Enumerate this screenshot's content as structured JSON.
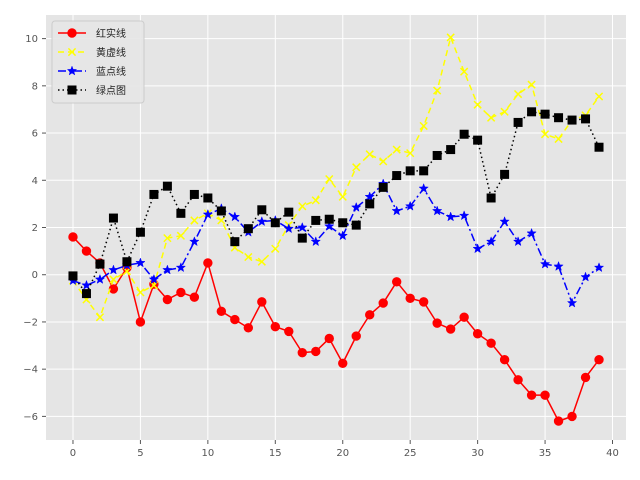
{
  "chart_data": {
    "type": "line",
    "title": "",
    "xlabel": "",
    "ylabel": "",
    "xlim": [
      -2,
      41
    ],
    "ylim": [
      -7,
      11
    ],
    "xticks": [
      0,
      5,
      10,
      15,
      20,
      25,
      30,
      35,
      40
    ],
    "yticks": [
      -6,
      -4,
      -2,
      0,
      2,
      4,
      6,
      8,
      10
    ],
    "grid": true,
    "legend_position": "top-left",
    "x": [
      0,
      1,
      2,
      3,
      4,
      5,
      6,
      7,
      8,
      9,
      10,
      11,
      12,
      13,
      14,
      15,
      16,
      17,
      18,
      19,
      20,
      21,
      22,
      23,
      24,
      25,
      26,
      27,
      28,
      29,
      30,
      31,
      32,
      33,
      34,
      35,
      36,
      37,
      38,
      39
    ],
    "series": [
      {
        "name": "红实线",
        "color": "#ff0000",
        "linestyle": "solid",
        "marker": "circle",
        "values": [
          1.6,
          1.0,
          0.5,
          -0.6,
          0.3,
          -2.0,
          -0.4,
          -1.05,
          -0.75,
          -0.95,
          0.5,
          -1.55,
          -1.9,
          -2.25,
          -1.15,
          -2.2,
          -2.4,
          -3.3,
          -3.25,
          -2.7,
          -3.75,
          -2.6,
          -1.7,
          -1.2,
          -0.3,
          -1.0,
          -1.15,
          -2.05,
          -2.3,
          -1.8,
          -2.5,
          -2.9,
          -3.6,
          -4.45,
          -5.1,
          -5.1,
          -6.2,
          -6.0,
          -4.35,
          -3.6
        ]
      },
      {
        "name": "黄虚线",
        "color": "#ffff00",
        "linestyle": "dashed",
        "marker": "x",
        "values": [
          -0.25,
          -1.05,
          -1.8,
          -0.2,
          0.15,
          -0.75,
          -0.45,
          1.55,
          1.65,
          2.3,
          2.6,
          2.3,
          1.15,
          0.75,
          0.55,
          1.1,
          2.1,
          2.9,
          3.15,
          4.05,
          3.3,
          4.55,
          5.1,
          4.8,
          5.3,
          5.15,
          6.3,
          7.8,
          10.05,
          8.6,
          7.2,
          6.65,
          6.9,
          7.65,
          8.05,
          5.95,
          5.75,
          6.55,
          6.75,
          7.55
        ]
      },
      {
        "name": "蓝点线",
        "color": "#0000ff",
        "linestyle": "dashdot",
        "marker": "star",
        "values": [
          -0.25,
          -0.45,
          -0.2,
          0.2,
          0.4,
          0.5,
          -0.2,
          0.2,
          0.3,
          1.4,
          2.55,
          2.8,
          2.45,
          1.8,
          2.25,
          2.3,
          1.95,
          2.0,
          1.4,
          2.05,
          1.65,
          2.85,
          3.3,
          3.85,
          2.7,
          2.9,
          3.65,
          2.7,
          2.45,
          2.5,
          1.1,
          1.4,
          2.25,
          1.4,
          1.75,
          0.45,
          0.35,
          -1.2,
          -0.1,
          0.3
        ]
      },
      {
        "name": "绿点图",
        "color": "#000000",
        "linestyle": "dotted",
        "marker": "square",
        "values": [
          -0.05,
          -0.8,
          0.45,
          2.4,
          0.55,
          1.8,
          3.4,
          3.75,
          2.6,
          3.4,
          3.25,
          2.7,
          1.4,
          1.95,
          2.75,
          2.2,
          2.65,
          1.55,
          2.3,
          2.35,
          2.2,
          2.1,
          3.0,
          3.7,
          4.2,
          4.4,
          4.4,
          5.05,
          5.3,
          5.95,
          5.7,
          3.25,
          4.25,
          6.45,
          6.9,
          6.8,
          6.65,
          6.55,
          6.6,
          5.4
        ]
      }
    ]
  },
  "colors": {
    "page_background": "#ffffff",
    "plot_background": "#e5e5e5",
    "grid": "#ffffff"
  }
}
